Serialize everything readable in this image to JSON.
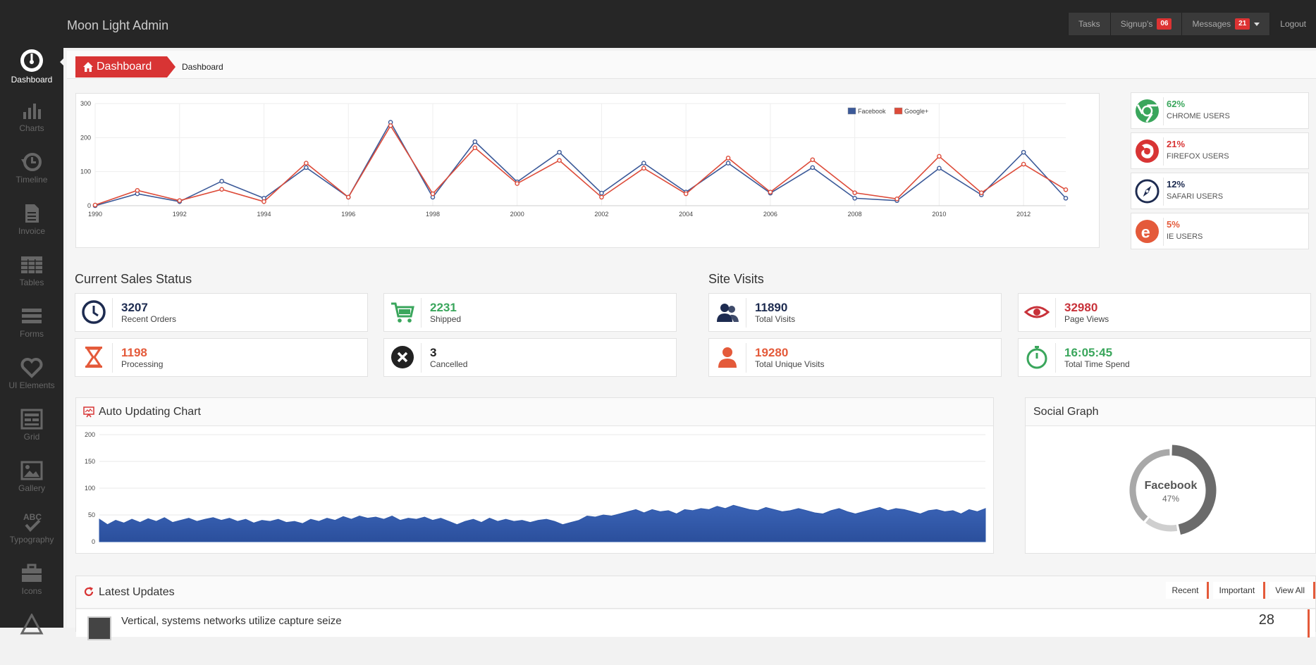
{
  "app": {
    "title": "Moon Light Admin"
  },
  "topnav": {
    "tasks": "Tasks",
    "signups": "Signup's",
    "signups_badge": "06",
    "messages": "Messages",
    "messages_badge": "21",
    "logout": "Logout"
  },
  "sidebar": {
    "items": [
      {
        "label": "Dashboard",
        "icon": "dashboard-gauge-icon"
      },
      {
        "label": "Charts",
        "icon": "bar-chart-icon"
      },
      {
        "label": "Timeline",
        "icon": "history-icon"
      },
      {
        "label": "Invoice",
        "icon": "document-icon"
      },
      {
        "label": "Tables",
        "icon": "table-icon"
      },
      {
        "label": "Forms",
        "icon": "form-lines-icon"
      },
      {
        "label": "UI Elements",
        "icon": "heart-icon"
      },
      {
        "label": "Grid",
        "icon": "grid-icon"
      },
      {
        "label": "Gallery",
        "icon": "image-icon"
      },
      {
        "label": "Typography",
        "icon": "abc-check-icon"
      },
      {
        "label": "Icons",
        "icon": "briefcase-icon"
      }
    ]
  },
  "breadcrumb": {
    "main": "Dashboard",
    "sub": "Dashboard"
  },
  "chart_data": [
    {
      "type": "line",
      "x": [
        1990,
        1991,
        1992,
        1993,
        1994,
        1995,
        1996,
        1997,
        1998,
        1999,
        2000,
        2001,
        2002,
        2003,
        2004,
        2005,
        2006,
        2007,
        2008,
        2009,
        2010,
        2011,
        2012,
        2013
      ],
      "xticks": [
        "1990",
        "1992",
        "1994",
        "1996",
        "1998",
        "2000",
        "2002",
        "2004",
        "2006",
        "2008",
        "2010",
        "2012"
      ],
      "yticks": [
        "0",
        "100",
        "200",
        "300"
      ],
      "ylim": [
        0,
        300
      ],
      "legend": "top-right",
      "series": [
        {
          "name": "Facebook",
          "color": "#3b5998",
          "values": [
            0,
            35,
            12,
            72,
            22,
            112,
            25,
            245,
            25,
            188,
            70,
            157,
            37,
            125,
            40,
            125,
            37,
            112,
            22,
            15,
            110,
            32,
            157,
            22
          ]
        },
        {
          "name": "Google+",
          "color": "#dd4b39",
          "values": [
            2,
            45,
            15,
            48,
            12,
            125,
            25,
            235,
            35,
            170,
            65,
            133,
            25,
            110,
            35,
            140,
            40,
            135,
            38,
            20,
            145,
            38,
            122,
            47
          ]
        }
      ]
    },
    {
      "type": "area",
      "title": "Auto Updating Chart",
      "yticks": [
        "0",
        "50",
        "100",
        "150",
        "200"
      ],
      "ylim": [
        0,
        200
      ],
      "series": [
        {
          "name": "",
          "color": "#3a63b6",
          "values": [
            42,
            32,
            40,
            35,
            42,
            36,
            43,
            38,
            45,
            36,
            40,
            44,
            38,
            42,
            45,
            40,
            44,
            38,
            42,
            35,
            40,
            38,
            42,
            36,
            38,
            34,
            42,
            38,
            44,
            40,
            47,
            42,
            48,
            44,
            46,
            42,
            48,
            40,
            44,
            42,
            46,
            40,
            44,
            38,
            32,
            38,
            42,
            36,
            44,
            38,
            42,
            38,
            40,
            36,
            40,
            42,
            38,
            32,
            36,
            40,
            48,
            46,
            50,
            48,
            52,
            56,
            60,
            54,
            60,
            56,
            58,
            52,
            60,
            58,
            62,
            60,
            66,
            62,
            68,
            64,
            60,
            58,
            64,
            60,
            56,
            58,
            62,
            58,
            54,
            52,
            58,
            62,
            56,
            52,
            56,
            60,
            64,
            58,
            62,
            60,
            56,
            52,
            58,
            60,
            56,
            58,
            52,
            60,
            56,
            62
          ]
        }
      ]
    },
    {
      "type": "pie",
      "center_label": "Facebook",
      "center_value": "47%",
      "slices": [
        {
          "label": "Facebook",
          "value": 47,
          "color": "#6b6b6b"
        },
        {
          "label": "",
          "value": 14,
          "color": "#cfcfcf"
        },
        {
          "label": "",
          "value": 39,
          "color": "#a8a8a8"
        }
      ]
    }
  ],
  "browsers": [
    {
      "pct": "62%",
      "label": "CHROME USERS",
      "color": "#3aa65c",
      "icon": "chrome-icon"
    },
    {
      "pct": "21%",
      "label": "FIREFOX USERS",
      "color": "#d83434",
      "icon": "firefox-icon"
    },
    {
      "pct": "12%",
      "label": "SAFARI USERS",
      "color": "#1d2b50",
      "icon": "safari-icon"
    },
    {
      "pct": "5%",
      "label": "IE USERS",
      "color": "#e45a3a",
      "icon": "ie-icon"
    }
  ],
  "sales": {
    "title": "Current Sales Status",
    "items": [
      {
        "value": "3207",
        "label": "Recent Orders",
        "color": "#1d2b50",
        "icon": "clock-icon"
      },
      {
        "value": "2231",
        "label": "Shipped",
        "color": "#3aa65c",
        "icon": "cart-icon"
      },
      {
        "value": "1198",
        "label": "Processing",
        "color": "#e45a3a",
        "icon": "hourglass-icon"
      },
      {
        "value": "3",
        "label": "Cancelled",
        "color": "#222222",
        "icon": "cancel-icon"
      }
    ]
  },
  "visits": {
    "title": "Site Visits",
    "items": [
      {
        "value": "11890",
        "label": "Total Visits",
        "color": "#1d2b50",
        "icon": "users-icon"
      },
      {
        "value": "32980",
        "label": "Page Views",
        "color": "#c8323a",
        "icon": "eye-icon"
      },
      {
        "value": "19280",
        "label": "Total Unique Visits",
        "color": "#e45a3a",
        "icon": "user-icon"
      },
      {
        "value": "16:05:45",
        "label": "Total Time Spend",
        "color": "#3aa65c",
        "icon": "stopwatch-icon"
      }
    ]
  },
  "auto_chart": {
    "title": "Auto Updating Chart"
  },
  "social": {
    "title": "Social Graph"
  },
  "updates": {
    "title": "Latest Updates",
    "tabs": [
      "Recent",
      "Important",
      "View All"
    ],
    "first_text": "Vertical, systems networks utilize capture seize",
    "first_date": "28"
  }
}
